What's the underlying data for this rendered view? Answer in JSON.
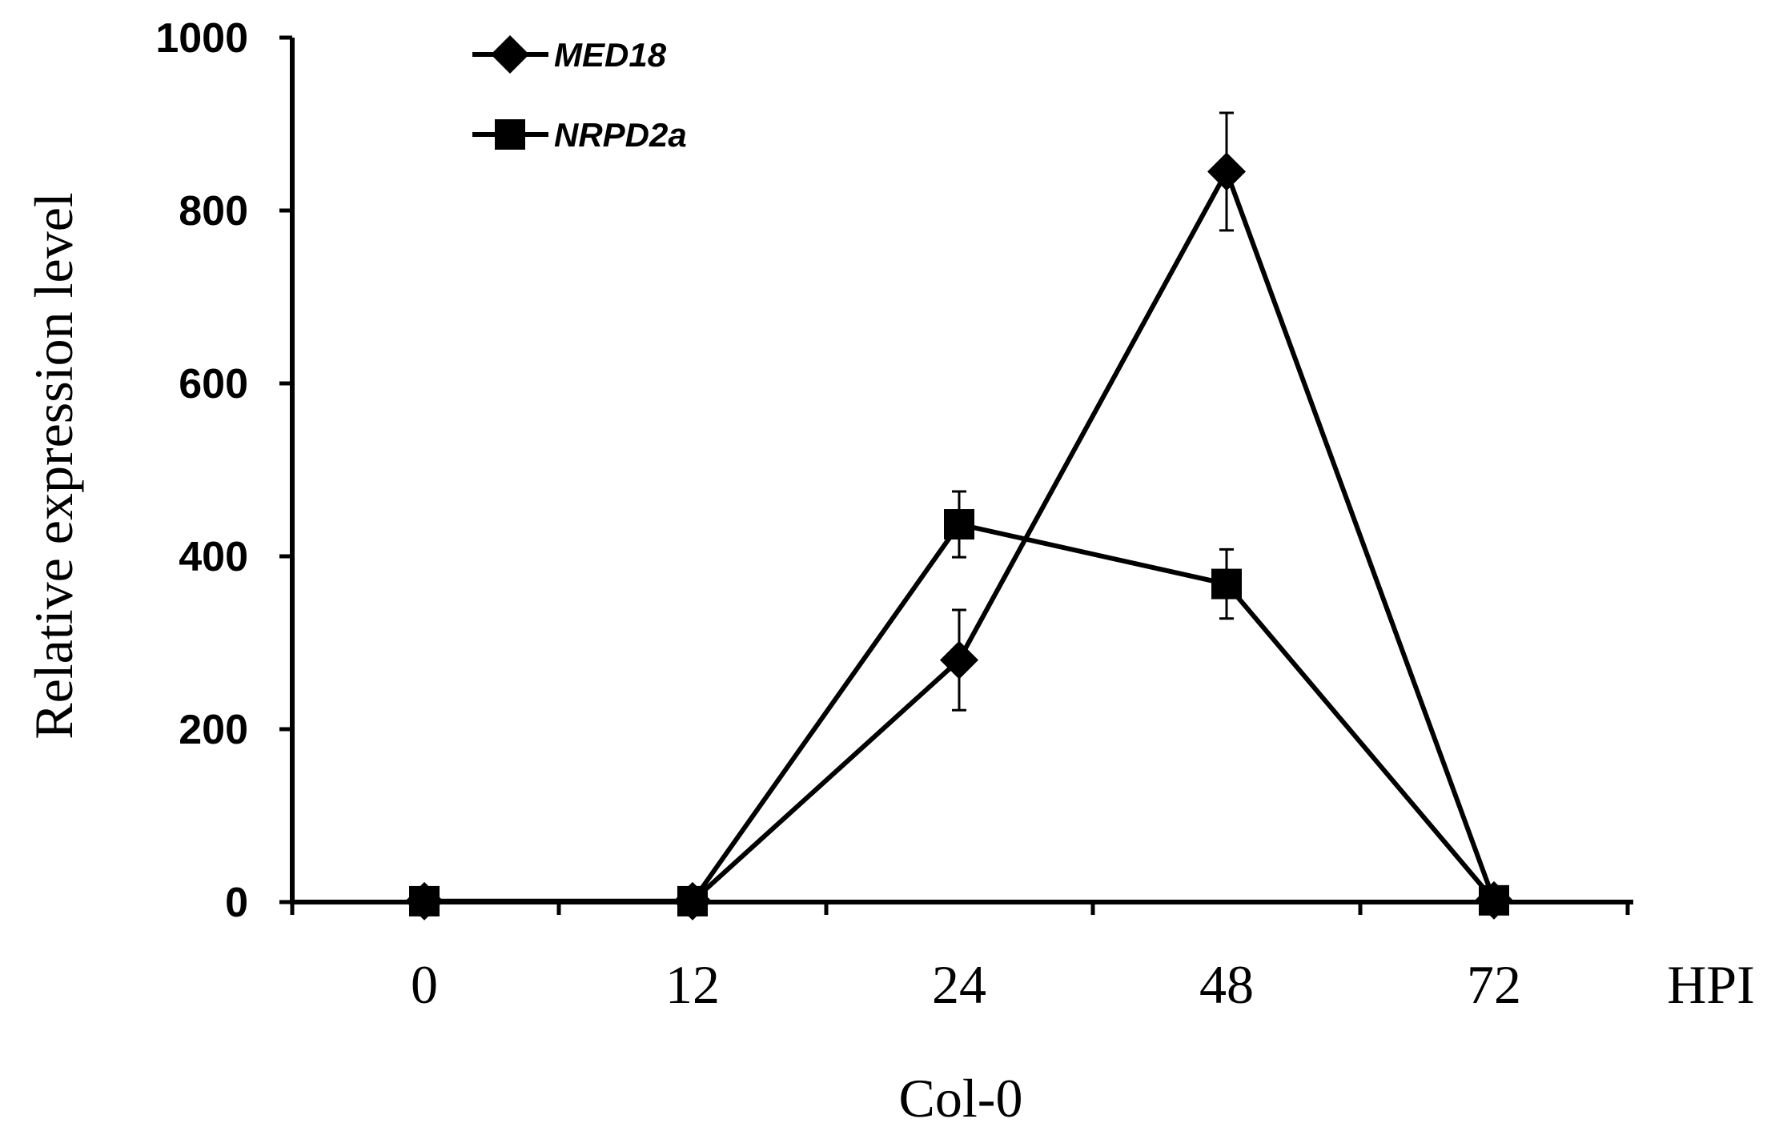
{
  "chart_data": {
    "type": "line",
    "xlabel": "Col-0",
    "x_unit_label": "HPI",
    "ylabel": "Relative expression level",
    "categories": [
      "0",
      "12",
      "24",
      "48",
      "72"
    ],
    "ylim": [
      0,
      1000
    ],
    "yticks": [
      "0",
      "200",
      "400",
      "600",
      "800",
      "1000"
    ],
    "grid": false,
    "legend_position": "top-left",
    "series": [
      {
        "name": "MED18",
        "marker": "diamond",
        "values": [
          1,
          1,
          280,
          845,
          2
        ],
        "errors": [
          0,
          0,
          58,
          68,
          0
        ]
      },
      {
        "name": "NRPD2a",
        "marker": "square",
        "values": [
          1,
          1,
          437,
          368,
          2
        ],
        "errors": [
          0,
          0,
          38,
          40,
          0
        ]
      }
    ],
    "colors": {
      "line": "#000000",
      "background": "#ffffff"
    }
  }
}
